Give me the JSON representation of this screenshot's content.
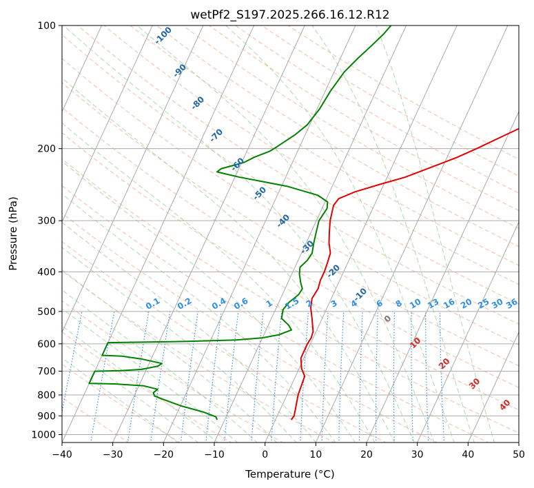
{
  "chart_data": {
    "type": "line",
    "subtype": "skew-t log-p diagram",
    "title": "wetPf2_S197.2025.266.16.12.R12",
    "xlabel": "Temperature (°C)",
    "ylabel": "Pressure (hPa)",
    "xlim": [
      -40,
      50
    ],
    "ylim": [
      1050,
      100
    ],
    "y_scale": "log",
    "x_ticks": [
      -40,
      -30,
      -20,
      -10,
      0,
      10,
      20,
      30,
      40,
      50
    ],
    "y_ticks": [
      100,
      200,
      300,
      400,
      500,
      600,
      700,
      800,
      900,
      1000
    ],
    "grid": true,
    "series": [
      {
        "color": "#e00000",
        "points": [
          [
            3.1,
            920
          ],
          [
            3.3,
            900
          ],
          [
            3.0,
            870
          ],
          [
            2.2,
            800
          ],
          [
            2.0,
            760
          ],
          [
            1.8,
            720
          ],
          [
            0.5,
            690
          ],
          [
            -0.6,
            650
          ],
          [
            -0.6,
            600
          ],
          [
            -0.4,
            580
          ],
          [
            -0.6,
            560
          ],
          [
            -2.0,
            520
          ],
          [
            -3.2,
            490
          ],
          [
            -3.8,
            465
          ],
          [
            -3.5,
            440
          ],
          [
            -3.8,
            420
          ],
          [
            -3.8,
            400
          ],
          [
            -4.0,
            380
          ],
          [
            -4.3,
            360
          ],
          [
            -5.5,
            340
          ],
          [
            -6.4,
            320
          ],
          [
            -7.3,
            300
          ],
          [
            -8.0,
            275
          ],
          [
            -7.6,
            265
          ],
          [
            -5.0,
            255
          ],
          [
            -1.0,
            245
          ],
          [
            3.5,
            235
          ],
          [
            8.5,
            220
          ],
          [
            12.0,
            210
          ],
          [
            15.0,
            200
          ],
          [
            19.5,
            185
          ],
          [
            24.5,
            170
          ],
          [
            26.0,
            160
          ],
          [
            27.0,
            152
          ],
          [
            27.8,
            145
          ],
          [
            27.8,
            140
          ],
          [
            28.3,
            133
          ],
          [
            29.3,
            126
          ],
          [
            31.0,
            120
          ],
          [
            34.0,
            112
          ],
          [
            36.5,
            106
          ],
          [
            38.0,
            101
          ],
          [
            38.2,
            100
          ]
        ]
      },
      {
        "color": "#008000",
        "points": [
          [
            -11.5,
            920
          ],
          [
            -12.0,
            905
          ],
          [
            -15.0,
            880
          ],
          [
            -20.0,
            850
          ],
          [
            -24.0,
            820
          ],
          [
            -26.0,
            805
          ],
          [
            -26.5,
            790
          ],
          [
            -26.0,
            775
          ],
          [
            -29.0,
            760
          ],
          [
            -35.0,
            752
          ],
          [
            -40.0,
            750
          ],
          [
            -40.0,
            700
          ],
          [
            -35.0,
            698
          ],
          [
            -31.0,
            693
          ],
          [
            -28.0,
            680
          ],
          [
            -27.5,
            670
          ],
          [
            -32.0,
            653
          ],
          [
            -36.0,
            643
          ],
          [
            -40.0,
            640
          ],
          [
            -40.0,
            596
          ],
          [
            -25.0,
            592
          ],
          [
            -15.0,
            587
          ],
          [
            -10.0,
            580
          ],
          [
            -7.0,
            570
          ],
          [
            -5.0,
            555
          ],
          [
            -6.0,
            540
          ],
          [
            -8.0,
            520
          ],
          [
            -8.5,
            495
          ],
          [
            -8.0,
            475
          ],
          [
            -6.8,
            455
          ],
          [
            -6.6,
            440
          ],
          [
            -7.5,
            425
          ],
          [
            -8.5,
            405
          ],
          [
            -9.0,
            390
          ],
          [
            -8.2,
            375
          ],
          [
            -7.9,
            360
          ],
          [
            -8.5,
            340
          ],
          [
            -9.0,
            320
          ],
          [
            -9.5,
            300
          ],
          [
            -9.0,
            280
          ],
          [
            -9.5,
            270
          ],
          [
            -12.0,
            260
          ],
          [
            -19.0,
            247
          ],
          [
            -29.0,
            235
          ],
          [
            -34.0,
            228
          ],
          [
            -33.5,
            224
          ],
          [
            -29.5,
            216
          ],
          [
            -28.0,
            210
          ],
          [
            -25.5,
            203
          ],
          [
            -24.5,
            198
          ],
          [
            -22.0,
            185
          ],
          [
            -20.5,
            175
          ],
          [
            -19.5,
            160
          ],
          [
            -19.0,
            145
          ],
          [
            -18.0,
            130
          ],
          [
            -16.5,
            120
          ],
          [
            -15.0,
            112
          ],
          [
            -13.7,
            105
          ],
          [
            -13.0,
            100
          ]
        ]
      }
    ],
    "background_lines": {
      "isotherm_color": "#aaaaaa",
      "dry_adiabat_color": "#f4a582",
      "moist_adiabat_color": "#9fd49f",
      "mixing_ratio_color": "#2f8fe6",
      "dry_adiabat_labels": [
        "-100",
        "-90",
        "-80",
        "-70",
        "-60",
        "-50",
        "-40",
        "-30",
        "-20",
        "-10"
      ],
      "mixing_ratio_labels": [
        "0.1",
        "0.2",
        "0.4",
        "0.6",
        "1",
        "1.5",
        "2",
        "3",
        "4",
        "6",
        "8",
        "10",
        "13",
        "16",
        "20",
        "25",
        "30",
        "36"
      ],
      "moist_adiabat_labels": [
        "0",
        "10",
        "20",
        "30",
        "40"
      ]
    }
  }
}
